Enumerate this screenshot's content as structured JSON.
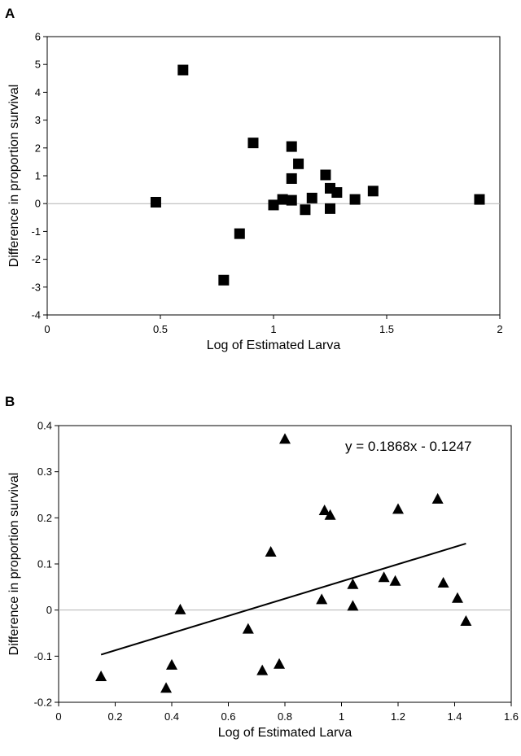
{
  "chart_data": [
    {
      "type": "scatter",
      "panel_label": "A",
      "xlabel": "Log of Estimated Larva",
      "ylabel": "Difference in proportion survival",
      "xlim": [
        0,
        2
      ],
      "ylim": [
        -4,
        6
      ],
      "xticks": [
        "0",
        "0.5",
        "1",
        "1.5",
        "2"
      ],
      "yticks": [
        "-4",
        "-3",
        "-2",
        "-1",
        "0",
        "1",
        "2",
        "3",
        "4",
        "5",
        "6"
      ],
      "grid": false,
      "zero_line": true,
      "marker": "square",
      "points": [
        {
          "x": 0.48,
          "y": 0.05
        },
        {
          "x": 0.6,
          "y": 4.8
        },
        {
          "x": 0.78,
          "y": -2.75
        },
        {
          "x": 0.85,
          "y": -1.08
        },
        {
          "x": 0.91,
          "y": 2.18
        },
        {
          "x": 1.0,
          "y": -0.05
        },
        {
          "x": 1.04,
          "y": 0.15
        },
        {
          "x": 1.08,
          "y": 2.05
        },
        {
          "x": 1.08,
          "y": 0.9
        },
        {
          "x": 1.08,
          "y": 0.12
        },
        {
          "x": 1.11,
          "y": 1.43
        },
        {
          "x": 1.14,
          "y": -0.22
        },
        {
          "x": 1.17,
          "y": 0.2
        },
        {
          "x": 1.23,
          "y": 1.03
        },
        {
          "x": 1.25,
          "y": 0.55
        },
        {
          "x": 1.25,
          "y": -0.18
        },
        {
          "x": 1.28,
          "y": 0.4
        },
        {
          "x": 1.36,
          "y": 0.15
        },
        {
          "x": 1.44,
          "y": 0.45
        },
        {
          "x": 1.91,
          "y": 0.15
        }
      ]
    },
    {
      "type": "scatter",
      "panel_label": "B",
      "xlabel": "Log of Estimated Larva",
      "ylabel": "Difference in proportion survival",
      "xlim": [
        0,
        1.6
      ],
      "ylim": [
        -0.2,
        0.4
      ],
      "xticks": [
        "0",
        "0.2",
        "0.4",
        "0.6",
        "0.8",
        "1",
        "1.2",
        "1.4",
        "1.6"
      ],
      "yticks": [
        "-0.2",
        "-0.1",
        "0",
        "0.1",
        "0.2",
        "0.3",
        "0.4"
      ],
      "grid": false,
      "zero_line": true,
      "marker": "triangle",
      "equation": "y = 0.1868x - 0.1247",
      "trendline": {
        "slope": 0.1868,
        "intercept": -0.1247,
        "x_range": [
          0.15,
          1.44
        ]
      },
      "points": [
        {
          "x": 0.15,
          "y": -0.145
        },
        {
          "x": 0.38,
          "y": -0.17
        },
        {
          "x": 0.4,
          "y": -0.12
        },
        {
          "x": 0.43,
          "y": 0.0
        },
        {
          "x": 0.67,
          "y": -0.042
        },
        {
          "x": 0.72,
          "y": -0.132
        },
        {
          "x": 0.75,
          "y": 0.125
        },
        {
          "x": 0.78,
          "y": -0.118
        },
        {
          "x": 0.8,
          "y": 0.37
        },
        {
          "x": 0.93,
          "y": 0.022
        },
        {
          "x": 0.94,
          "y": 0.215
        },
        {
          "x": 0.96,
          "y": 0.205
        },
        {
          "x": 1.04,
          "y": 0.055
        },
        {
          "x": 1.04,
          "y": 0.008
        },
        {
          "x": 1.15,
          "y": 0.07
        },
        {
          "x": 1.19,
          "y": 0.062
        },
        {
          "x": 1.2,
          "y": 0.218
        },
        {
          "x": 1.34,
          "y": 0.24
        },
        {
          "x": 1.36,
          "y": 0.058
        },
        {
          "x": 1.41,
          "y": 0.025
        },
        {
          "x": 1.44,
          "y": -0.025
        }
      ]
    }
  ]
}
